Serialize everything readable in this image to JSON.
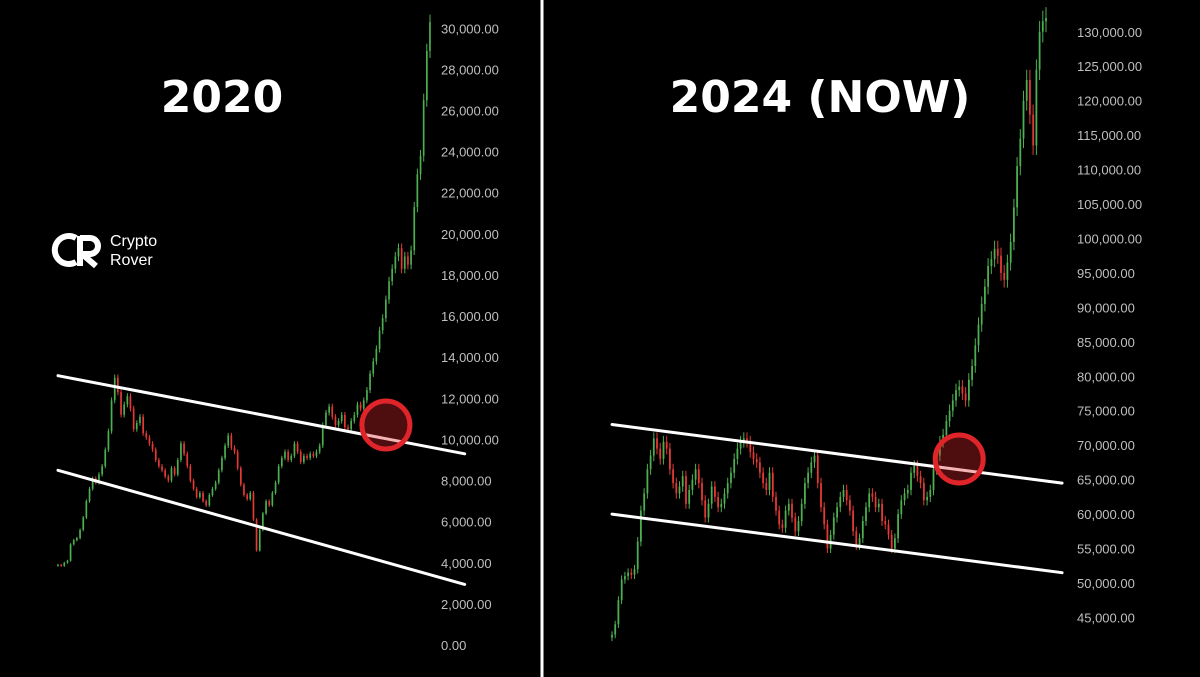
{
  "logo": {
    "line1": "Crypto",
    "line2": "Rover"
  },
  "colors": {
    "background": "#000000",
    "up": "#4caf50",
    "down": "#e53935",
    "trendline": "#ffffff",
    "highlight": "#e0252a",
    "divider": "#ffffff"
  },
  "chart_data": [
    {
      "type": "candlestick",
      "title": "2020",
      "ylim": [
        0,
        30500
      ],
      "y_ticks": [
        "0.00",
        "2,000.00",
        "4,000.00",
        "6,000.00",
        "8,000.00",
        "10,000.00",
        "12,000.00",
        "14,000.00",
        "16,000.00",
        "18,000.00",
        "20,000.00",
        "22,000.00",
        "24,000.00",
        "26,000.00",
        "28,000.00",
        "30,000.00"
      ],
      "series": [
        {
          "name": "",
          "values": [
            3900,
            3850,
            4000,
            4100,
            4900,
            5100,
            5200,
            5600,
            6200,
            7000,
            7600,
            8100,
            7900,
            8300,
            8700,
            9500,
            10400,
            11900,
            13000,
            12300,
            11200,
            11700,
            12100,
            11500,
            10500,
            10800,
            11100,
            10300,
            10100,
            9800,
            9500,
            9000,
            8700,
            8500,
            8200,
            8000,
            8600,
            8300,
            9000,
            9800,
            9300,
            8700,
            8000,
            7600,
            7200,
            7400,
            7000,
            6800,
            7300,
            7600,
            7900,
            8500,
            9100,
            9700,
            10200,
            9600,
            9400,
            8600,
            7800,
            7300,
            7100,
            7400,
            6100,
            4600,
            5600,
            6400,
            7000,
            6800,
            7400,
            7900,
            8700,
            9100,
            9400,
            9000,
            9200,
            9800,
            9400,
            8900,
            9200,
            9100,
            9300,
            9200,
            9400,
            9700,
            10700,
            11300,
            11600,
            11100,
            10700,
            10900,
            11200,
            10600,
            10500,
            10900,
            11200,
            11700,
            11500,
            11900,
            12400,
            13200,
            13800,
            14400,
            15300,
            15900,
            16800,
            17700,
            18300,
            18900,
            19300,
            18300,
            18900,
            18500,
            19200,
            21300,
            22900,
            23800,
            26500,
            28900,
            30300
          ]
        }
      ],
      "trendlines": [
        {
          "label": "upper",
          "points": [
            [
              0,
              13100
            ],
            [
              129,
              9300
            ]
          ]
        },
        {
          "label": "lower",
          "points": [
            [
              0,
              8500
            ],
            [
              129,
              2950
            ]
          ]
        }
      ],
      "highlight": {
        "x_index": 104,
        "value": 10700
      }
    },
    {
      "type": "candlestick",
      "title": "2024 (NOW)",
      "ylim": [
        41000,
        132000
      ],
      "y_ticks": [
        "45,000.00",
        "50,000.00",
        "55,000.00",
        "60,000.00",
        "65,000.00",
        "70,000.00",
        "75,000.00",
        "80,000.00",
        "85,000.00",
        "90,000.00",
        "95,000.00",
        "100,000.00",
        "105,000.00",
        "110,000.00",
        "115,000.00",
        "120,000.00",
        "125,000.00",
        "130,000.00"
      ],
      "series": [
        {
          "name": "",
          "values": [
            42500,
            44000,
            47500,
            50500,
            51000,
            51500,
            51200,
            52000,
            56000,
            60500,
            63000,
            66500,
            68500,
            71000,
            69500,
            68000,
            70500,
            69500,
            66500,
            64500,
            63000,
            64000,
            65500,
            61500,
            63500,
            65000,
            66500,
            64500,
            62000,
            59500,
            61500,
            64000,
            62500,
            61000,
            61500,
            63000,
            64500,
            66000,
            68000,
            69500,
            70500,
            71000,
            70500,
            69000,
            68000,
            67500,
            66000,
            64500,
            63500,
            66000,
            62500,
            60500,
            58500,
            58000,
            60500,
            61500,
            59500,
            57500,
            59000,
            61500,
            64500,
            66000,
            67500,
            68500,
            64500,
            61000,
            58500,
            55000,
            57000,
            59500,
            61000,
            62500,
            63500,
            62000,
            60500,
            57500,
            55500,
            56500,
            59000,
            61000,
            63000,
            62500,
            61000,
            61500,
            59000,
            58500,
            57000,
            55000,
            56500,
            60000,
            62000,
            63000,
            63500,
            66000,
            67000,
            65500,
            64500,
            62000,
            62500,
            63500,
            66500,
            68500,
            70500,
            71500,
            73500,
            75000,
            76500,
            78000,
            78500,
            77500,
            76500,
            79500,
            81500,
            84500,
            87500,
            90500,
            93000,
            96000,
            97000,
            98500,
            97500,
            95000,
            94000,
            96500,
            99500,
            104500,
            110500,
            114500,
            120000,
            123000,
            118000,
            113500,
            124500,
            130000,
            131500,
            132000
          ]
        }
      ],
      "trendlines": [
        {
          "label": "upper",
          "points": [
            [
              0,
              73000
            ],
            [
              140,
              64500
            ]
          ]
        },
        {
          "label": "lower",
          "points": [
            [
              0,
              60000
            ],
            [
              140,
              51500
            ]
          ]
        }
      ],
      "highlight": {
        "x_index": 108,
        "value": 68000
      }
    }
  ]
}
